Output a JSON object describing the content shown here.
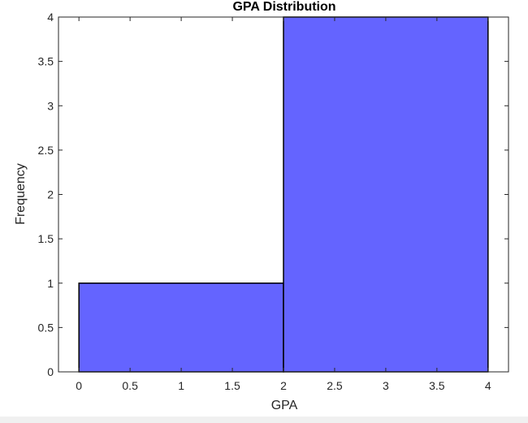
{
  "chart_data": {
    "type": "bar",
    "title": "GPA Distribution",
    "xlabel": "GPA",
    "ylabel": "Frequency",
    "bins": [
      {
        "x0": 0,
        "x1": 2,
        "value": 1
      },
      {
        "x0": 2,
        "x1": 4,
        "value": 4
      }
    ],
    "xlim": [
      -0.2,
      4.2
    ],
    "ylim": [
      0,
      4
    ],
    "xticks": [
      "0",
      "0.5",
      "1",
      "1.5",
      "2",
      "2.5",
      "3",
      "3.5",
      "4"
    ],
    "yticks": [
      "0",
      "0.5",
      "1",
      "1.5",
      "2",
      "2.5",
      "3",
      "3.5",
      "4"
    ],
    "grid": false,
    "bar_color": "#6464ff"
  }
}
